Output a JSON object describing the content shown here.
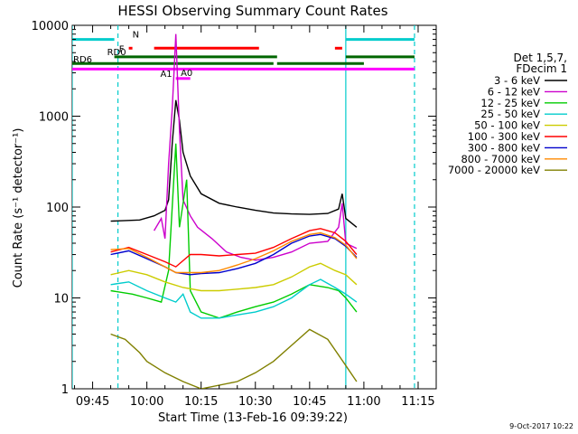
{
  "chart_data": {
    "type": "line",
    "title": "HESSI Observing Summary Count Rates",
    "xlabel": "Start Time (13-Feb-16 09:39:22)",
    "ylabel": "Count Rate (s⁻¹ detector⁻¹)",
    "y_scale": "log",
    "ylim": [
      1,
      10000
    ],
    "xlim": [
      "09:39:22",
      "11:20:00"
    ],
    "x_ticks": [
      "09:45",
      "10:00",
      "10:15",
      "10:30",
      "10:45",
      "11:00",
      "11:15"
    ],
    "y_ticks": [
      "1",
      "10",
      "100",
      "1000",
      "10000"
    ],
    "footer": "9-Oct-2017 10:22",
    "legend": {
      "header": [
        "Det 1,5,7,",
        "FDecim 1"
      ],
      "placement": "right"
    },
    "series": [
      {
        "name": "3 - 6 keV",
        "color": "#000000",
        "points": [
          [
            "09:50",
            70
          ],
          [
            "09:58",
            72
          ],
          [
            "10:02",
            80
          ],
          [
            "10:05",
            92
          ],
          [
            "10:06",
            120
          ],
          [
            "10:07",
            500
          ],
          [
            "10:08",
            1500
          ],
          [
            "10:09",
            900
          ],
          [
            "10:10",
            400
          ],
          [
            "10:12",
            220
          ],
          [
            "10:15",
            140
          ],
          [
            "10:20",
            110
          ],
          [
            "10:25",
            100
          ],
          [
            "10:30",
            92
          ],
          [
            "10:35",
            86
          ],
          [
            "10:40",
            84
          ],
          [
            "10:45",
            83
          ],
          [
            "10:50",
            85
          ],
          [
            "10:53",
            95
          ],
          [
            "10:54",
            140
          ],
          [
            "10:55",
            75
          ],
          [
            "10:58",
            60
          ]
        ]
      },
      {
        "name": "6 - 12 keV",
        "color": "#cc00cc",
        "points": [
          [
            "10:02",
            55
          ],
          [
            "10:04",
            75
          ],
          [
            "10:05",
            45
          ],
          [
            "10:06",
            300
          ],
          [
            "10:07",
            1200
          ],
          [
            "10:08",
            8000
          ],
          [
            "10:09",
            700
          ],
          [
            "10:10",
            120
          ],
          [
            "10:12",
            80
          ],
          [
            "10:14",
            60
          ],
          [
            "10:18",
            45
          ],
          [
            "10:22",
            32
          ],
          [
            "10:26",
            28
          ],
          [
            "10:30",
            26
          ],
          [
            "10:35",
            28
          ],
          [
            "10:40",
            32
          ],
          [
            "10:45",
            40
          ],
          [
            "10:50",
            42
          ],
          [
            "10:53",
            60
          ],
          [
            "10:54",
            110
          ],
          [
            "10:55",
            40
          ],
          [
            "10:58",
            35
          ]
        ]
      },
      {
        "name": "12 - 25 keV",
        "color": "#00cc00",
        "points": [
          [
            "09:50",
            12
          ],
          [
            "09:56",
            11
          ],
          [
            "10:00",
            10
          ],
          [
            "10:04",
            9
          ],
          [
            "10:06",
            20
          ],
          [
            "10:08",
            500
          ],
          [
            "10:09",
            60
          ],
          [
            "10:11",
            200
          ],
          [
            "10:12",
            12
          ],
          [
            "10:15",
            7
          ],
          [
            "10:20",
            6
          ],
          [
            "10:25",
            7
          ],
          [
            "10:30",
            8
          ],
          [
            "10:35",
            9
          ],
          [
            "10:40",
            11
          ],
          [
            "10:45",
            14
          ],
          [
            "10:50",
            13
          ],
          [
            "10:53",
            12
          ],
          [
            "10:55",
            10
          ],
          [
            "10:58",
            7
          ]
        ]
      },
      {
        "name": "25 - 50 keV",
        "color": "#00cccc",
        "points": [
          [
            "09:50",
            14
          ],
          [
            "09:55",
            15
          ],
          [
            "10:00",
            12
          ],
          [
            "10:05",
            10
          ],
          [
            "10:08",
            9
          ],
          [
            "10:10",
            11
          ],
          [
            "10:12",
            7
          ],
          [
            "10:15",
            6
          ],
          [
            "10:20",
            6
          ],
          [
            "10:25",
            6.5
          ],
          [
            "10:30",
            7
          ],
          [
            "10:35",
            8
          ],
          [
            "10:40",
            10
          ],
          [
            "10:45",
            14
          ],
          [
            "10:48",
            16
          ],
          [
            "10:52",
            13
          ],
          [
            "10:55",
            11
          ],
          [
            "10:58",
            9
          ]
        ]
      },
      {
        "name": "50 - 100 keV",
        "color": "#cccc00",
        "points": [
          [
            "09:50",
            18
          ],
          [
            "09:55",
            20
          ],
          [
            "10:00",
            18
          ],
          [
            "10:05",
            15
          ],
          [
            "10:10",
            13
          ],
          [
            "10:15",
            12
          ],
          [
            "10:20",
            12
          ],
          [
            "10:25",
            12.5
          ],
          [
            "10:30",
            13
          ],
          [
            "10:35",
            14
          ],
          [
            "10:40",
            17
          ],
          [
            "10:45",
            22
          ],
          [
            "10:48",
            24
          ],
          [
            "10:52",
            20
          ],
          [
            "10:55",
            18
          ],
          [
            "10:58",
            14
          ]
        ]
      },
      {
        "name": "100 - 300 keV",
        "color": "#ff0000",
        "points": [
          [
            "09:50",
            32
          ],
          [
            "09:55",
            36
          ],
          [
            "10:00",
            30
          ],
          [
            "10:05",
            25
          ],
          [
            "10:08",
            22
          ],
          [
            "10:12",
            30
          ],
          [
            "10:15",
            30
          ],
          [
            "10:20",
            29
          ],
          [
            "10:25",
            30
          ],
          [
            "10:30",
            31
          ],
          [
            "10:35",
            36
          ],
          [
            "10:40",
            45
          ],
          [
            "10:45",
            55
          ],
          [
            "10:48",
            58
          ],
          [
            "10:52",
            52
          ],
          [
            "10:55",
            42
          ],
          [
            "10:58",
            30
          ]
        ]
      },
      {
        "name": "300 - 800 keV",
        "color": "#0000cc",
        "points": [
          [
            "09:50",
            30
          ],
          [
            "09:55",
            33
          ],
          [
            "10:00",
            27
          ],
          [
            "10:05",
            22
          ],
          [
            "10:08",
            19
          ],
          [
            "10:12",
            18
          ],
          [
            "10:15",
            18.5
          ],
          [
            "10:20",
            19
          ],
          [
            "10:25",
            21
          ],
          [
            "10:30",
            24
          ],
          [
            "10:35",
            30
          ],
          [
            "10:40",
            40
          ],
          [
            "10:45",
            48
          ],
          [
            "10:48",
            50
          ],
          [
            "10:52",
            45
          ],
          [
            "10:55",
            37
          ],
          [
            "10:58",
            28
          ]
        ]
      },
      {
        "name": "800 - 7000 keV",
        "color": "#ff8800",
        "points": [
          [
            "09:50",
            34
          ],
          [
            "09:55",
            35
          ],
          [
            "10:00",
            28
          ],
          [
            "10:05",
            22
          ],
          [
            "10:08",
            19
          ],
          [
            "10:12",
            19
          ],
          [
            "10:15",
            19
          ],
          [
            "10:20",
            20
          ],
          [
            "10:25",
            23
          ],
          [
            "10:30",
            27
          ],
          [
            "10:35",
            33
          ],
          [
            "10:40",
            42
          ],
          [
            "10:45",
            50
          ],
          [
            "10:48",
            52
          ],
          [
            "10:52",
            46
          ],
          [
            "10:55",
            38
          ],
          [
            "10:58",
            27
          ]
        ]
      },
      {
        "name": "7000 - 20000 keV",
        "color": "#808000",
        "points": [
          [
            "09:50",
            4
          ],
          [
            "09:54",
            3.5
          ],
          [
            "09:58",
            2.5
          ],
          [
            "10:00",
            2
          ],
          [
            "10:05",
            1.5
          ],
          [
            "10:10",
            1.2
          ],
          [
            "10:15",
            1
          ],
          [
            "10:25",
            1.2
          ],
          [
            "10:30",
            1.5
          ],
          [
            "10:35",
            2
          ],
          [
            "10:40",
            3
          ],
          [
            "10:45",
            4.5
          ],
          [
            "10:50",
            3.5
          ],
          [
            "10:55",
            1.8
          ],
          [
            "10:58",
            1.2
          ]
        ]
      }
    ],
    "flags": {
      "N": {
        "color": "#00cccc",
        "rate": 7000,
        "segments": [
          [
            "09:39:22",
            "09:51"
          ],
          [
            "10:55",
            "11:14"
          ]
        ]
      },
      "F": {
        "color": "#ff0000",
        "rate": 5600,
        "segments": [
          [
            "09:55",
            "09:56"
          ],
          [
            "10:02",
            "10:31"
          ],
          [
            "10:52",
            "10:54"
          ]
        ]
      },
      "RD0": {
        "color": "#006600",
        "rate": 4500,
        "segments": [
          [
            "09:51",
            "10:36"
          ],
          [
            "10:55",
            "11:14"
          ]
        ]
      },
      "RD6": {
        "color": "#006600",
        "rate": 3800,
        "segments": [
          [
            "09:39:22",
            "10:35"
          ],
          [
            "10:36",
            "11:00"
          ]
        ]
      },
      "M": {
        "color": "#ff00ff",
        "rate": 3300,
        "segments": [
          [
            "09:39:22",
            "11:14"
          ]
        ]
      },
      "A1": {
        "color": "#ff00ff",
        "rate": 2600,
        "segments": [
          [
            "10:08",
            "10:09"
          ]
        ]
      },
      "A0": {
        "color": "#ff00ff",
        "rate": 2600,
        "segments": [
          [
            "10:09",
            "10:12"
          ]
        ]
      }
    },
    "vertical_lines": [
      {
        "time": "09:39:22",
        "style": "solid",
        "color": "#00cccc"
      },
      {
        "time": "09:52",
        "style": "dashed",
        "color": "#00cccc"
      },
      {
        "time": "10:55",
        "style": "solid",
        "color": "#00cccc"
      },
      {
        "time": "11:14",
        "style": "dashed",
        "color": "#00cccc"
      }
    ]
  }
}
